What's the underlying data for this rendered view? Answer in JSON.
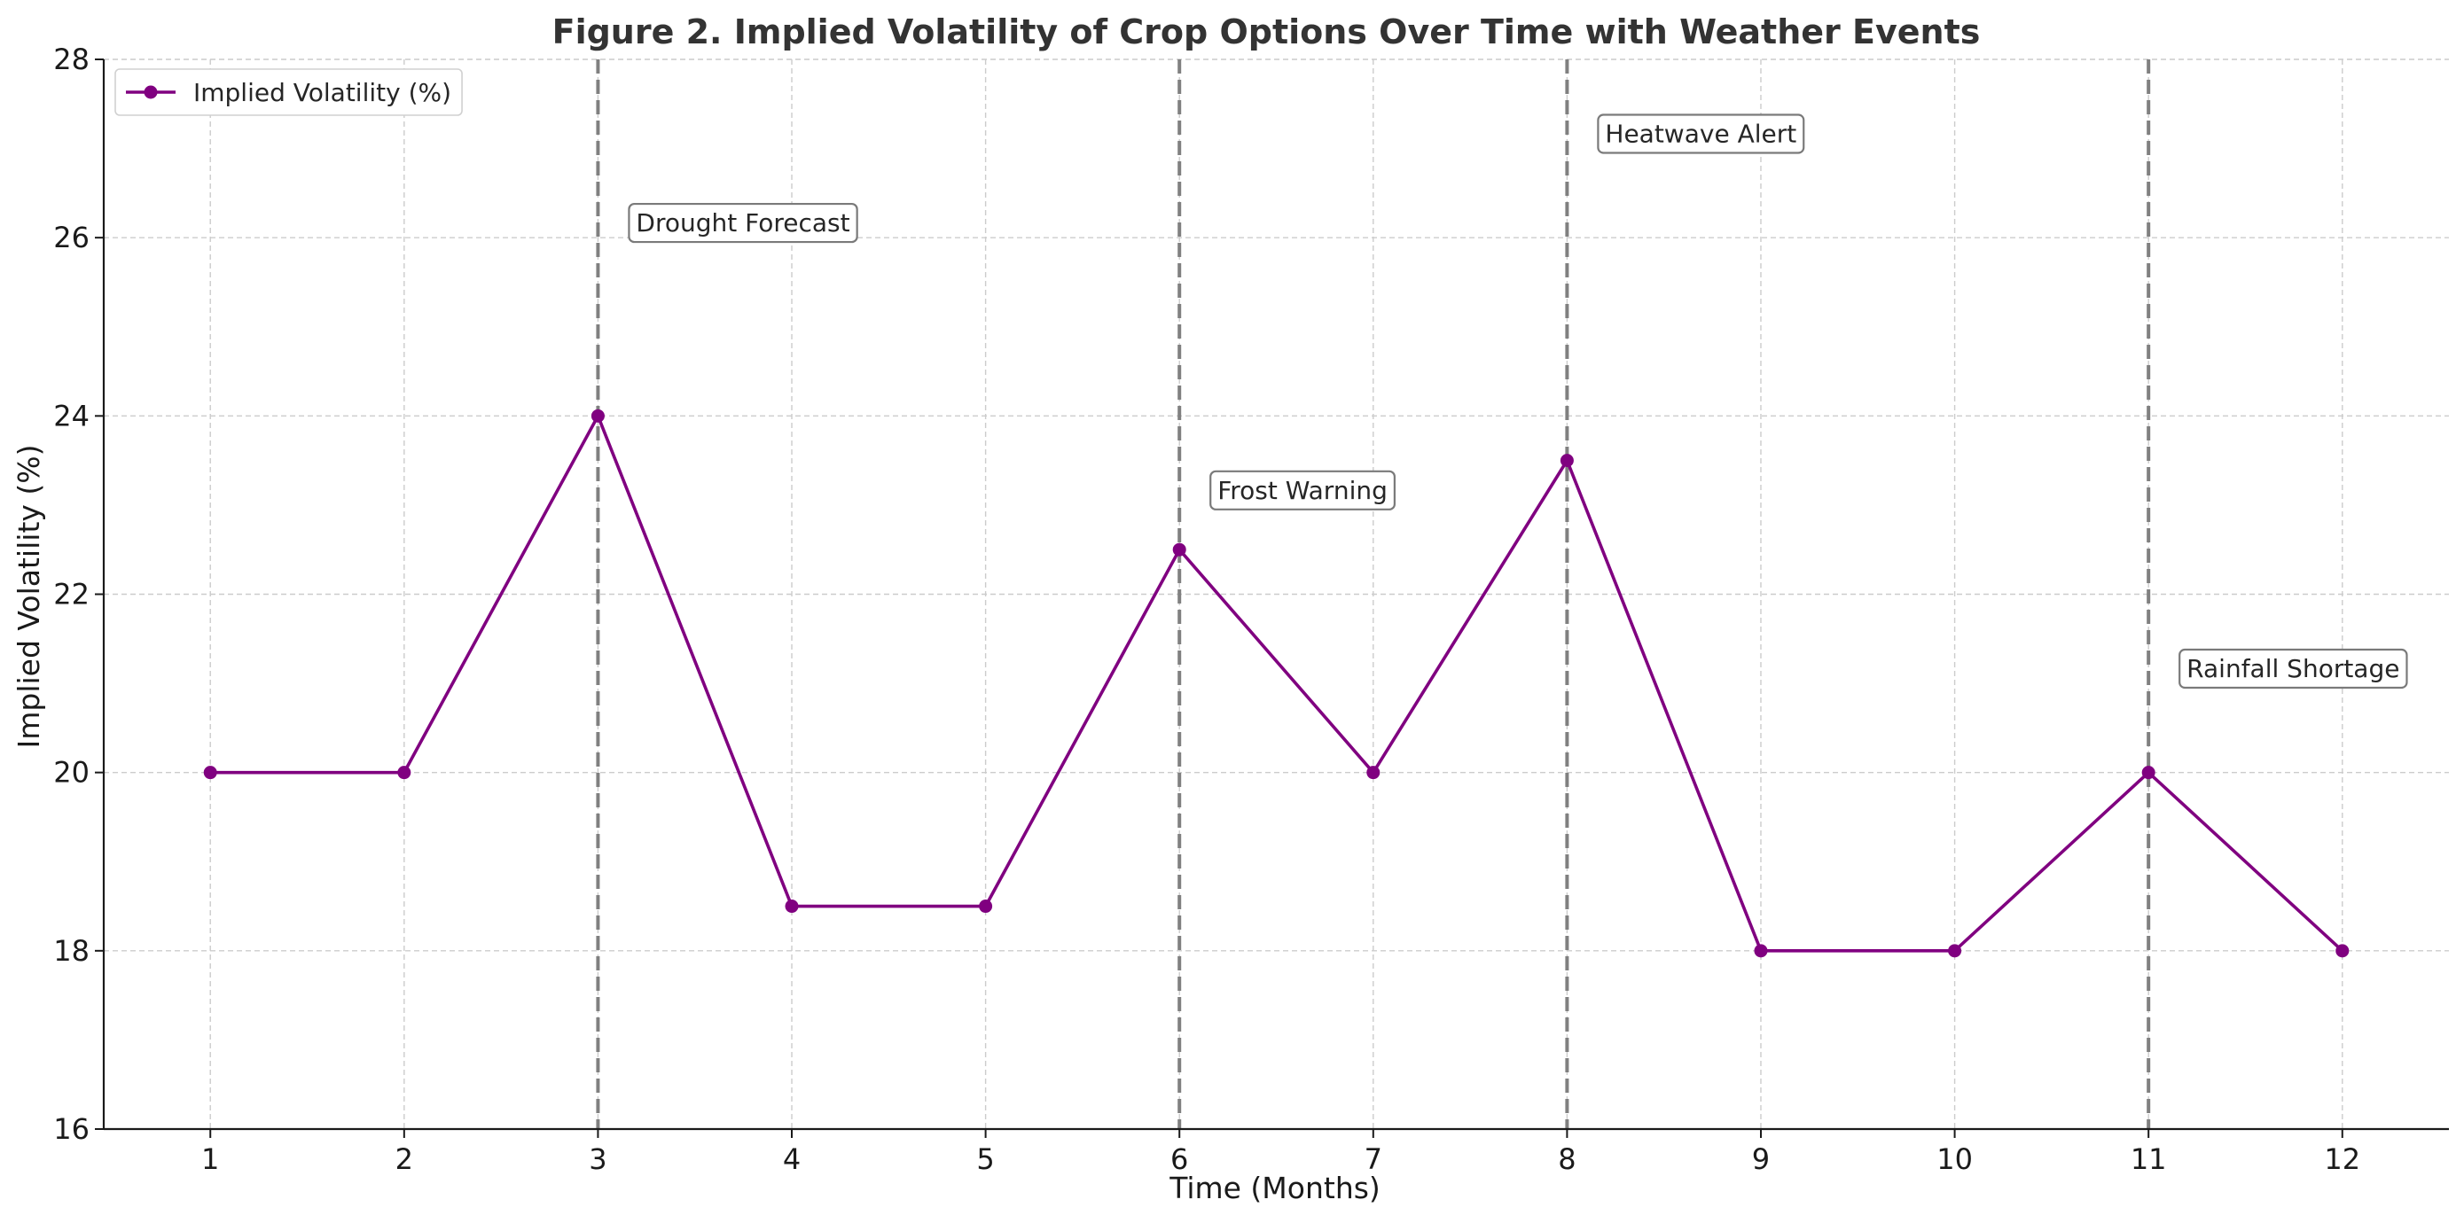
{
  "chart_data": {
    "type": "line",
    "title": "Figure 2. Implied Volatility of Crop Options Over Time with Weather Events",
    "xlabel": "Time (Months)",
    "ylabel": "Implied Volatility (%)",
    "x": [
      1,
      2,
      3,
      4,
      5,
      6,
      7,
      8,
      9,
      10,
      11,
      12
    ],
    "x_ticks": [
      "1",
      "2",
      "3",
      "4",
      "5",
      "6",
      "7",
      "8",
      "9",
      "10",
      "11",
      "12"
    ],
    "y_ticks": [
      "16",
      "18",
      "20",
      "22",
      "24",
      "26",
      "28"
    ],
    "xlim": [
      0.45,
      12.55
    ],
    "ylim": [
      16,
      28
    ],
    "grid": true,
    "legend_position": "top-left",
    "series": [
      {
        "name": "Implied Volatility (%)",
        "values": [
          20,
          20,
          24,
          18.5,
          18.5,
          22.5,
          20,
          23.5,
          18,
          18,
          20,
          18
        ],
        "color": "#800080",
        "marker": "circle"
      }
    ],
    "events": [
      {
        "x": 3,
        "label": "Drought Forecast",
        "label_y": 26.15
      },
      {
        "x": 6,
        "label": "Frost Warning",
        "label_y": 23.15
      },
      {
        "x": 8,
        "label": "Heatwave Alert",
        "label_y": 27.15
      },
      {
        "x": 11,
        "label": "Rainfall Shortage",
        "label_y": 21.15
      }
    ],
    "event_line_color": "#808080",
    "grid_color": "#cccccc"
  }
}
